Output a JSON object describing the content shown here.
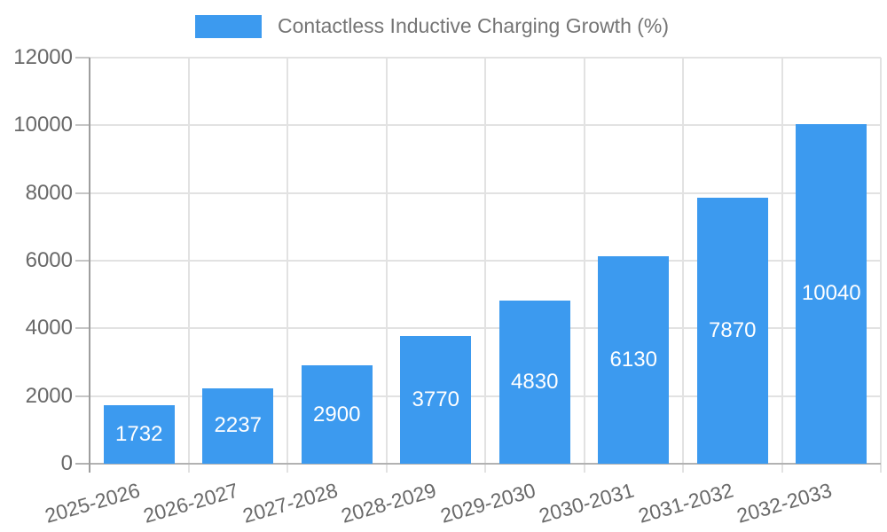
{
  "chart_data": {
    "type": "bar",
    "title": "Contactless Inductive Charging Growth (%)",
    "legend_position": "top",
    "categories": [
      "2025-2026",
      "2026-2027",
      "2027-2028",
      "2028-2029",
      "2029-2030",
      "2030-2031",
      "2031-2032",
      "2032-2033"
    ],
    "values": [
      1732,
      2237,
      2900,
      3770,
      4830,
      6130,
      7870,
      10040
    ],
    "xlabel": "",
    "ylabel": "",
    "ylim": [
      0,
      12000
    ],
    "yticks": [
      0,
      2000,
      4000,
      6000,
      8000,
      10000,
      12000
    ],
    "grid": true,
    "bar_value_labels": true,
    "x_label_rotation_deg": -16,
    "colors": {
      "bar": "#3c9aef",
      "bar_label_text": "#ffffff",
      "axis_text": "#696969",
      "legend_text": "#757575",
      "gridline": "#e2e2e2",
      "tick": "#c6c6c6",
      "axis_line": "#9e9e9e",
      "baseline": "#b2b2b2",
      "background": "#ffffff"
    }
  }
}
